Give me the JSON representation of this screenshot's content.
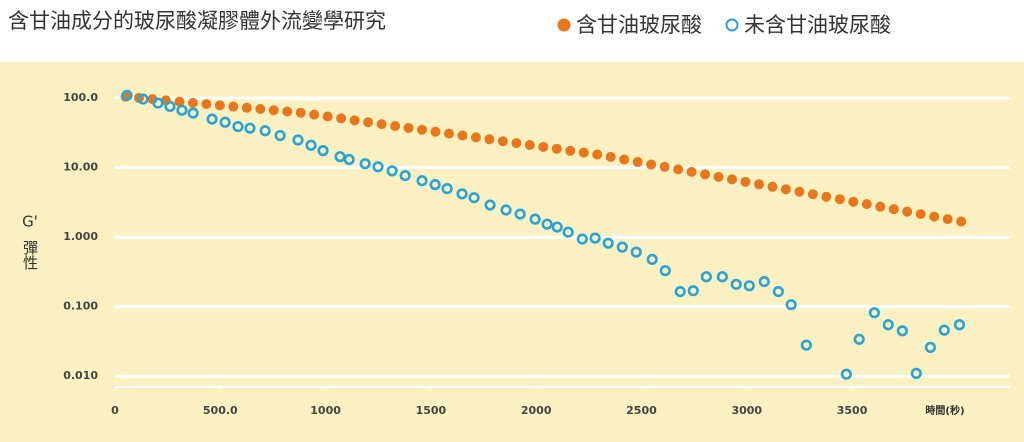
{
  "chart_data": {
    "type": "scatter",
    "title": "含甘油成分的玻尿酸凝膠體外流變學研究",
    "xlabel": "時間(秒)",
    "ylabel": [
      "G'",
      "彈性"
    ],
    "log_y": true,
    "grid": true,
    "legend": "top-right",
    "xlim": [
      0,
      4250
    ],
    "ylim": [
      0.007,
      300
    ],
    "xticks": [
      0,
      {
        "value": 500,
        "label": "500.0"
      },
      1000,
      1500,
      2000,
      2500,
      3000,
      3500
    ],
    "yticks": [
      {
        "value": 0.01,
        "label": "0.010"
      },
      {
        "value": 0.1,
        "label": "0.100"
      },
      {
        "value": 1,
        "label": "1.000"
      },
      {
        "value": 10,
        "label": "10.00"
      },
      {
        "value": 100,
        "label": "100.0"
      }
    ],
    "series": [
      {
        "name": "含甘油玻尿酸",
        "color": "#e8771c",
        "filled": true,
        "x": [
          50,
          114,
          178,
          242,
          306,
          370,
          434,
          498,
          562,
          626,
          690,
          754,
          818,
          882,
          946,
          1010,
          1074,
          1138,
          1202,
          1266,
          1330,
          1394,
          1458,
          1522,
          1586,
          1650,
          1714,
          1778,
          1842,
          1906,
          1970,
          2034,
          2098,
          2162,
          2226,
          2290,
          2354,
          2418,
          2482,
          2546,
          2610,
          2674,
          2738,
          2802,
          2866,
          2930,
          2994,
          3058,
          3122,
          3186,
          3250,
          3314,
          3378,
          3442,
          3506,
          3570,
          3634,
          3698,
          3762,
          3826,
          3890,
          3954,
          4018
        ],
        "values": [
          105,
          100.8,
          96.8,
          92.9,
          89.2,
          85.6,
          82.2,
          78.9,
          75.8,
          72.7,
          69.8,
          67.0,
          64.3,
          61.8,
          58.0,
          54.5,
          51.1,
          48.0,
          45.1,
          42.3,
          39.8,
          37.3,
          35.1,
          32.9,
          30.9,
          29.0,
          27.3,
          25.6,
          24.0,
          22.6,
          21.2,
          19.9,
          18.7,
          17.5,
          16.5,
          15.5,
          14.3,
          13.1,
          12.1,
          11.1,
          10.3,
          9.45,
          8.7,
          8.02,
          7.38,
          6.8,
          6.26,
          5.77,
          5.31,
          4.89,
          4.51,
          4.15,
          3.82,
          3.52,
          3.24,
          2.99,
          2.75,
          2.53,
          2.33,
          2.15,
          1.98,
          1.82,
          1.68
        ]
      },
      {
        "name": "未含甘油玻尿酸",
        "color": "#2aa3d6",
        "filled": false,
        "x": [
          57,
          133,
          204,
          261,
          318,
          371,
          461,
          523,
          584,
          641,
          713,
          784,
          869,
          931,
          988,
          1069,
          1112,
          1188,
          1249,
          1316,
          1378,
          1458,
          1520,
          1577,
          1648,
          1705,
          1781,
          1857,
          1924,
          1995,
          2052,
          2100,
          2152,
          2219,
          2280,
          2342,
          2409,
          2475,
          2551,
          2613,
          2684,
          2746,
          2808,
          2884,
          2950,
          3012,
          3083,
          3150,
          3211,
          3283,
          3473,
          3534,
          3606,
          3672,
          3739,
          3805,
          3872,
          3938,
          4010
        ],
        "values": [
          110,
          97,
          85,
          76,
          67,
          61,
          50,
          45,
          39,
          37,
          34,
          29,
          25,
          21,
          17.6,
          14.4,
          13.1,
          11.4,
          10.3,
          9.0,
          7.7,
          6.5,
          5.7,
          5.0,
          4.2,
          3.7,
          2.9,
          2.46,
          2.15,
          1.82,
          1.54,
          1.4,
          1.18,
          0.94,
          0.97,
          0.82,
          0.72,
          0.61,
          0.48,
          0.33,
          0.165,
          0.17,
          0.27,
          0.27,
          0.21,
          0.2,
          0.23,
          0.165,
          0.107,
          0.028,
          0.0107,
          0.034,
          0.082,
          0.055,
          0.045,
          0.011,
          0.026,
          0.046,
          0.055
        ]
      }
    ]
  }
}
